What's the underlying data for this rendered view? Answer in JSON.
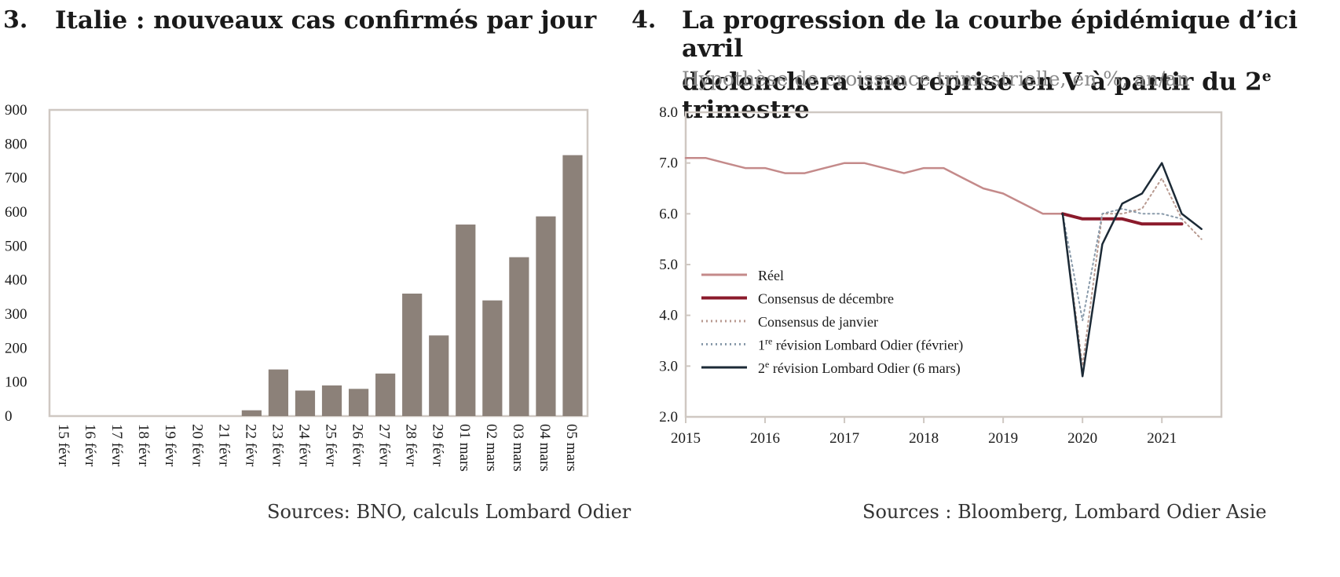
{
  "left": {
    "number": "3.",
    "title": "Italie : nouveaux cas confirmés par jour",
    "source": "Sources: BNO, calculs Lombard Odier"
  },
  "right": {
    "number": "4.",
    "title_line1": "La progression de la courbe épidémique d’ici avril",
    "title_line2_pre": "déclenchera une reprise en V à partir du 2",
    "title_line2_sup": "e",
    "title_line2_post": " trimestre",
    "subtitle": "Hypothèse de croissance trimestrielle, en %, an/an",
    "source": "Sources : Bloomberg, Lombard Odier Asie"
  },
  "chart_data": [
    {
      "type": "bar",
      "categories": [
        "15 févr",
        "16 févr",
        "17 févr",
        "18 févr",
        "19 févr",
        "20 févr",
        "21 févr",
        "22 févr",
        "23 févr",
        "24 févr",
        "25 févr",
        "26 févr",
        "27 févr",
        "28 févr",
        "29 févr",
        "01 mars",
        "02 mars",
        "03 mars",
        "04 mars",
        "05 mars"
      ],
      "values": [
        0,
        0,
        0,
        0,
        0,
        0,
        0,
        17,
        137,
        75,
        90,
        80,
        125,
        360,
        237,
        563,
        340,
        467,
        587,
        767
      ],
      "ylim": [
        0,
        900
      ],
      "yticks": [
        0,
        100,
        200,
        300,
        400,
        500,
        600,
        700,
        800,
        900
      ],
      "color": "#8c8179"
    },
    {
      "type": "line",
      "xlim": [
        2015,
        2021.75
      ],
      "xticks": [
        "2015",
        "2016",
        "2017",
        "2018",
        "2019",
        "2020",
        "2021"
      ],
      "ylim": [
        2.0,
        8.0
      ],
      "yticks": [
        "2.0",
        "3.0",
        "4.0",
        "5.0",
        "6.0",
        "7.0",
        "8.0"
      ],
      "series": [
        {
          "name": "Réel",
          "color": "#c48a8a",
          "style": "solid",
          "width": 2.5,
          "points": [
            [
              2015.0,
              7.1
            ],
            [
              2015.25,
              7.1
            ],
            [
              2015.5,
              7.0
            ],
            [
              2015.75,
              6.9
            ],
            [
              2016.0,
              6.9
            ],
            [
              2016.25,
              6.8
            ],
            [
              2016.5,
              6.8
            ],
            [
              2016.75,
              6.9
            ],
            [
              2017.0,
              7.0
            ],
            [
              2017.25,
              7.0
            ],
            [
              2017.5,
              6.9
            ],
            [
              2017.75,
              6.8
            ],
            [
              2018.0,
              6.9
            ],
            [
              2018.25,
              6.9
            ],
            [
              2018.5,
              6.7
            ],
            [
              2018.75,
              6.5
            ],
            [
              2019.0,
              6.4
            ],
            [
              2019.25,
              6.2
            ],
            [
              2019.5,
              6.0
            ],
            [
              2019.75,
              6.0
            ]
          ]
        },
        {
          "name": "Consensus de décembre",
          "color": "#8b1a2b",
          "style": "solid",
          "width": 4,
          "points": [
            [
              2019.75,
              6.0
            ],
            [
              2020.0,
              5.9
            ],
            [
              2020.25,
              5.9
            ],
            [
              2020.5,
              5.9
            ],
            [
              2020.75,
              5.8
            ],
            [
              2021.0,
              5.8
            ],
            [
              2021.25,
              5.8
            ]
          ]
        },
        {
          "name": "Consensus de janvier",
          "color": "#b89a90",
          "style": "dotted",
          "width": 2,
          "points": [
            [
              2019.75,
              6.0
            ],
            [
              2020.0,
              3.0
            ],
            [
              2020.25,
              6.0
            ],
            [
              2020.5,
              6.0
            ],
            [
              2020.75,
              6.1
            ],
            [
              2021.0,
              6.7
            ],
            [
              2021.25,
              5.9
            ],
            [
              2021.5,
              5.5
            ]
          ]
        },
        {
          "name": "1re révision Lombard Odier (février)",
          "color": "#8a9bab",
          "style": "dotted",
          "width": 2,
          "points": [
            [
              2019.75,
              6.0
            ],
            [
              2020.0,
              3.9
            ],
            [
              2020.25,
              6.0
            ],
            [
              2020.5,
              6.1
            ],
            [
              2020.75,
              6.0
            ],
            [
              2021.0,
              6.0
            ],
            [
              2021.25,
              5.9
            ]
          ]
        },
        {
          "name": "2e révision Lombard Odier (6 mars)",
          "color": "#1c2a36",
          "style": "solid",
          "width": 2.5,
          "points": [
            [
              2019.75,
              6.0
            ],
            [
              2020.0,
              2.8
            ],
            [
              2020.25,
              5.4
            ],
            [
              2020.5,
              6.2
            ],
            [
              2020.75,
              6.4
            ],
            [
              2021.0,
              7.0
            ],
            [
              2021.25,
              6.0
            ],
            [
              2021.5,
              5.7
            ]
          ]
        }
      ],
      "legend": [
        {
          "pre": "Réel",
          "sup": "",
          "post": ""
        },
        {
          "pre": "Consensus de décembre",
          "sup": "",
          "post": ""
        },
        {
          "pre": "Consensus de janvier",
          "sup": "",
          "post": ""
        },
        {
          "pre": "1",
          "sup": "re",
          "post": " révision Lombard Odier (février)"
        },
        {
          "pre": "2",
          "sup": "e",
          "post": " révision Lombard Odier (6 mars)"
        }
      ]
    }
  ]
}
